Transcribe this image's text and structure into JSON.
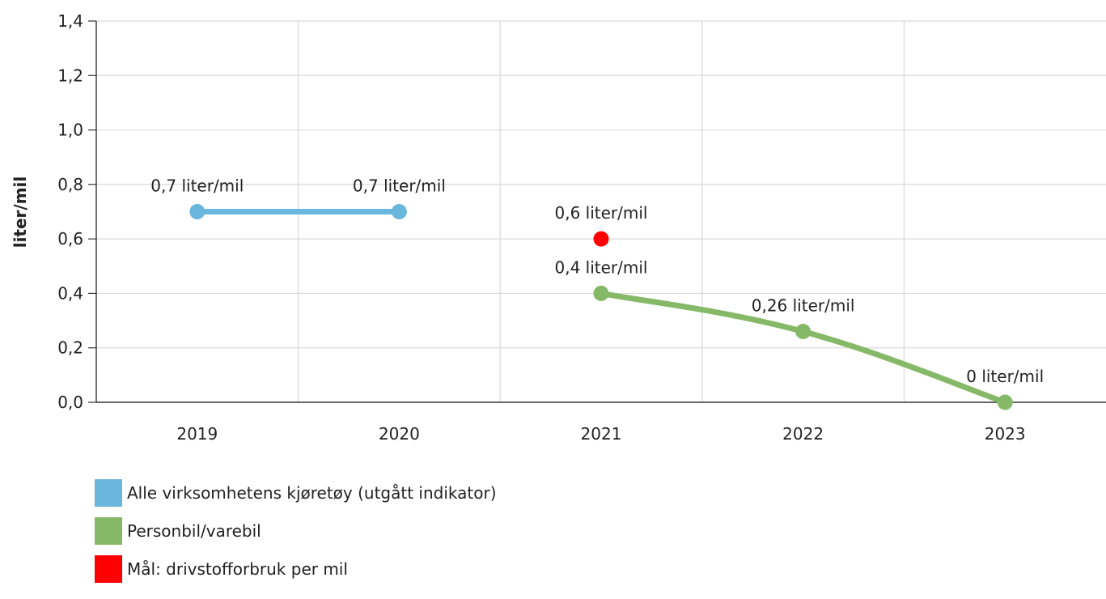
{
  "chart_data": {
    "type": "line",
    "ylabel": "liter/mil",
    "ylim": [
      0,
      1.4
    ],
    "yticks": [
      "0,0",
      "0,2",
      "0,4",
      "0,6",
      "0,8",
      "1,0",
      "1,2",
      "1,4"
    ],
    "categories": [
      "2019",
      "2020",
      "2021",
      "2022",
      "2023"
    ],
    "grid": true,
    "legend_position": "bottom-left",
    "series": [
      {
        "name": "Alle virksomhetens kjøretøy (utgått indikator)",
        "color": "#6bb6dc",
        "style": "line",
        "points": [
          {
            "x": "2019",
            "y": 0.7,
            "label": "0,7 liter/mil"
          },
          {
            "x": "2020",
            "y": 0.7,
            "label": "0,7 liter/mil"
          }
        ]
      },
      {
        "name": "Personbil/varebil",
        "color": "#86b967",
        "style": "spline",
        "points": [
          {
            "x": "2021",
            "y": 0.4,
            "label": "0,4 liter/mil"
          },
          {
            "x": "2022",
            "y": 0.26,
            "label": "0,26 liter/mil"
          },
          {
            "x": "2023",
            "y": 0,
            "label": "0 liter/mil"
          }
        ]
      },
      {
        "name": "Mål: drivstofforbruk per mil",
        "color": "#ff0000",
        "style": "marker",
        "points": [
          {
            "x": "2021",
            "y": 0.6,
            "label": "0,6 liter/mil"
          }
        ]
      }
    ]
  }
}
